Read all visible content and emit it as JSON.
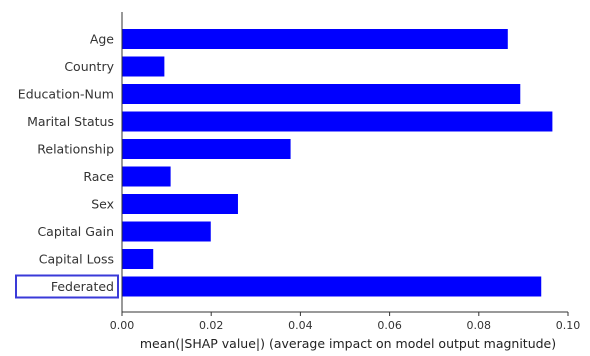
{
  "chart_data": {
    "type": "bar",
    "orientation": "horizontal",
    "categories": [
      "Age",
      "Country",
      "Education-Num",
      "Marital Status",
      "Relationship",
      "Race",
      "Sex",
      "Capital Gain",
      "Capital Loss",
      "Federated"
    ],
    "values": [
      0.0865,
      0.0095,
      0.0893,
      0.0965,
      0.0378,
      0.0109,
      0.026,
      0.0199,
      0.007,
      0.094
    ],
    "xlabel": "mean(|SHAP value|) (average impact on model output magnitude)",
    "ylabel": "",
    "title": "",
    "xlim": [
      0,
      0.1
    ],
    "xticks": [
      0.0,
      0.02,
      0.04,
      0.06,
      0.08,
      0.1
    ],
    "xtick_labels": [
      "0.00",
      "0.02",
      "0.04",
      "0.06",
      "0.08",
      "0.10"
    ],
    "highlighted_category": "Federated",
    "bar_color": "#0000ff",
    "highlight_box_color": "#3a3ad8",
    "grid": false
  }
}
